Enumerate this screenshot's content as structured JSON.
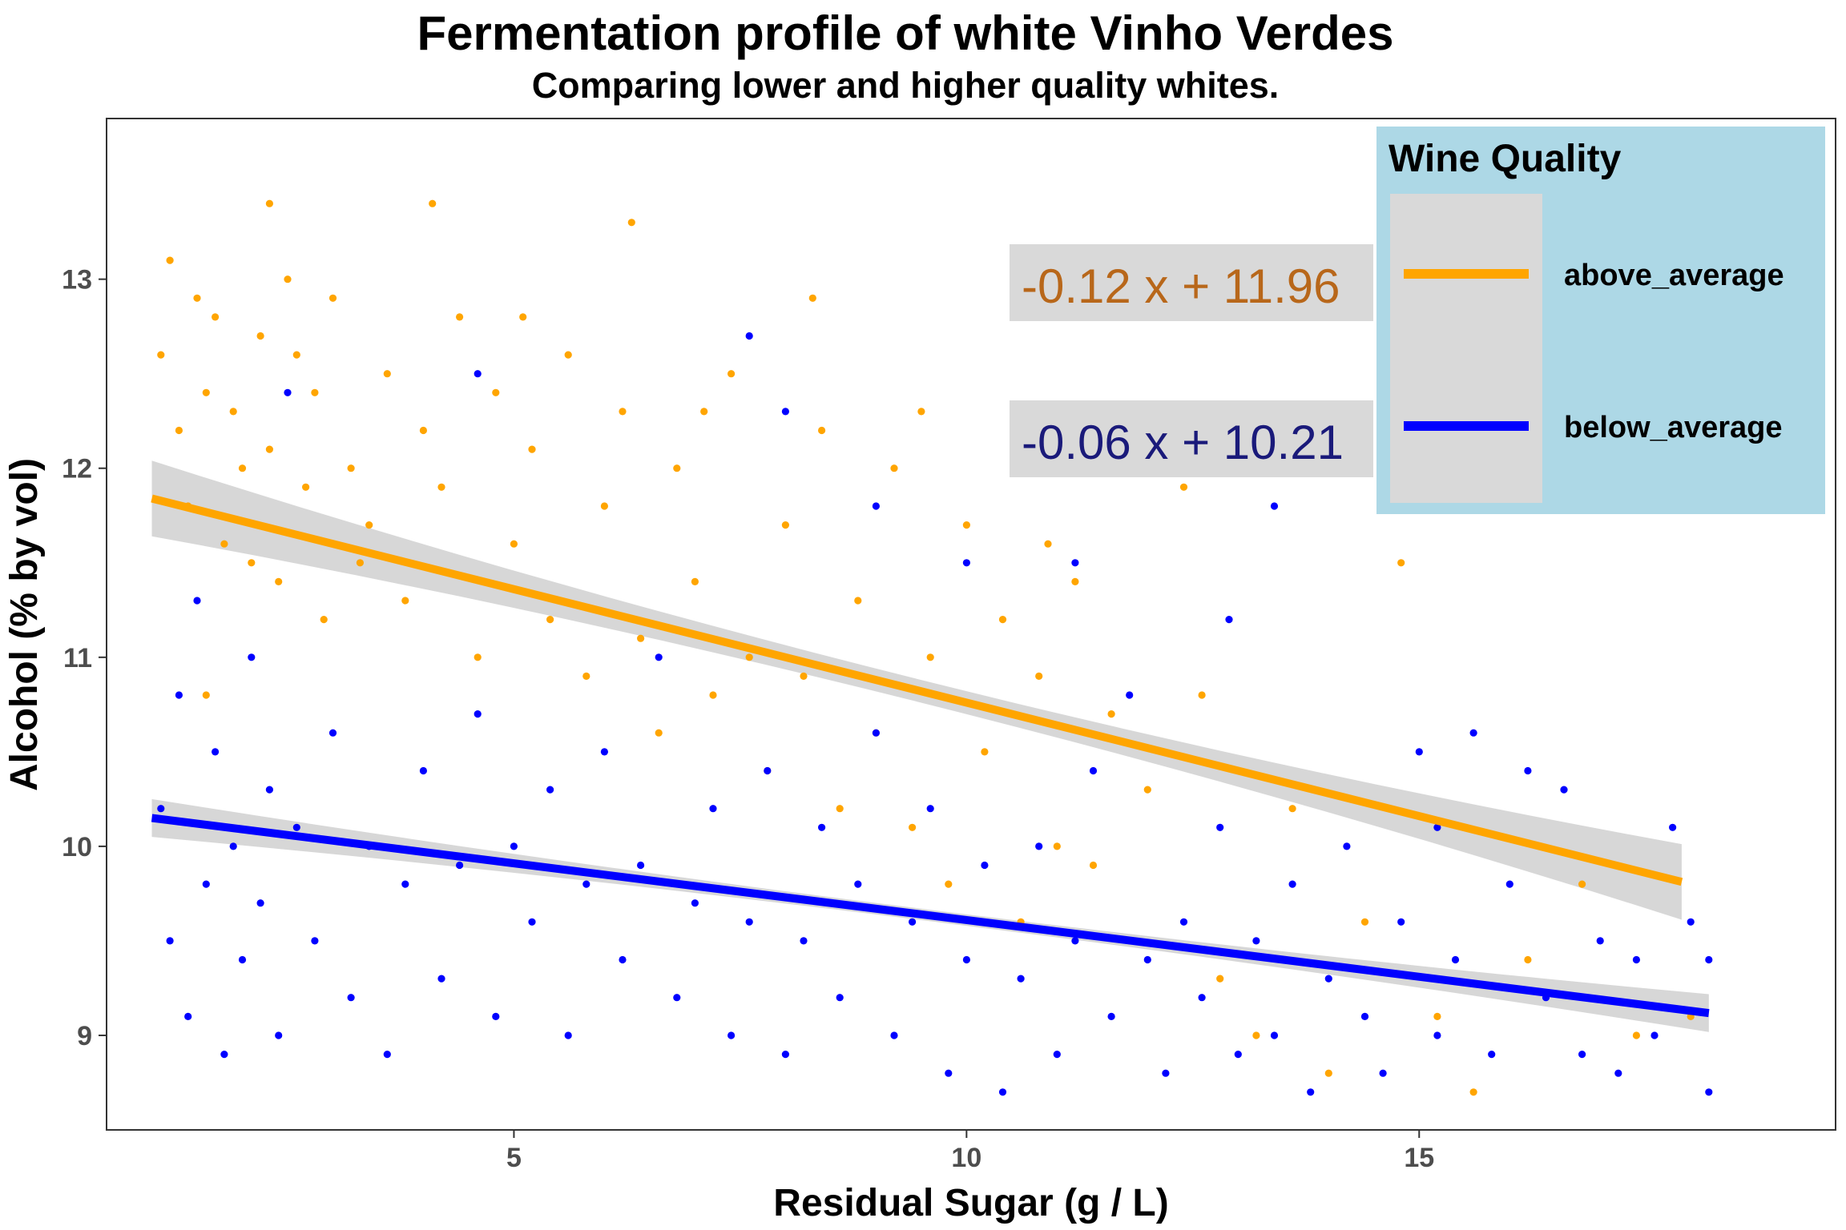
{
  "chart_data": {
    "type": "scatter",
    "title": "Fermentation profile of white Vinho Verdes",
    "subtitle": "Comparing lower and higher quality whites.",
    "xlabel": "Residual Sugar (g / L)",
    "ylabel": "Alcohol (% by vol)",
    "xlim": [
      0.5,
      19.6
    ],
    "ylim": [
      8.5,
      13.85
    ],
    "x_ticks": [
      5,
      10,
      15
    ],
    "y_ticks": [
      9,
      10,
      11,
      12,
      13
    ],
    "x_tick_labels": [
      "5",
      "10",
      "15"
    ],
    "y_tick_labels": [
      "9",
      "10",
      "11",
      "12",
      "13"
    ],
    "grid": false,
    "legend_position": "top-right",
    "legend": {
      "title": "Wine Quality",
      "entries": [
        {
          "label": "above_average",
          "color": "#FFA500"
        },
        {
          "label": "below_average",
          "color": "#0000FF"
        }
      ]
    },
    "series": [
      {
        "name": "above_average",
        "color": "#FFA500",
        "fit": {
          "slope": -0.12,
          "intercept": 11.96,
          "x_range": [
            1.0,
            17.9
          ],
          "band": [
            0.06,
            0.2
          ]
        },
        "equation": "-0.12 x +  11.96",
        "points": [
          [
            1.1,
            12.6
          ],
          [
            1.2,
            13.1
          ],
          [
            1.3,
            12.2
          ],
          [
            1.4,
            11.8
          ],
          [
            1.5,
            12.9
          ],
          [
            1.6,
            12.4
          ],
          [
            1.7,
            12.8
          ],
          [
            1.8,
            11.6
          ],
          [
            1.9,
            12.3
          ],
          [
            2.0,
            12.0
          ],
          [
            2.1,
            11.5
          ],
          [
            2.2,
            12.7
          ],
          [
            2.3,
            12.1
          ],
          [
            2.4,
            11.4
          ],
          [
            2.5,
            13.0
          ],
          [
            2.6,
            12.6
          ],
          [
            2.7,
            11.9
          ],
          [
            2.8,
            12.4
          ],
          [
            2.9,
            11.2
          ],
          [
            3.0,
            12.9
          ],
          [
            3.2,
            12.0
          ],
          [
            3.4,
            11.7
          ],
          [
            3.6,
            12.5
          ],
          [
            3.8,
            11.3
          ],
          [
            4.0,
            12.2
          ],
          [
            4.2,
            11.9
          ],
          [
            4.4,
            12.8
          ],
          [
            4.6,
            11.0
          ],
          [
            4.8,
            12.4
          ],
          [
            5.0,
            11.6
          ],
          [
            5.2,
            12.1
          ],
          [
            5.4,
            11.2
          ],
          [
            5.6,
            12.6
          ],
          [
            5.8,
            10.9
          ],
          [
            6.0,
            11.8
          ],
          [
            6.2,
            12.3
          ],
          [
            6.4,
            11.1
          ],
          [
            6.6,
            10.6
          ],
          [
            6.8,
            12.0
          ],
          [
            7.0,
            11.4
          ],
          [
            7.2,
            10.8
          ],
          [
            7.4,
            12.5
          ],
          [
            7.6,
            11.0
          ],
          [
            7.8,
            10.4
          ],
          [
            8.0,
            11.7
          ],
          [
            8.2,
            10.9
          ],
          [
            8.4,
            12.2
          ],
          [
            8.6,
            10.2
          ],
          [
            8.8,
            11.3
          ],
          [
            9.0,
            10.6
          ],
          [
            9.2,
            12.0
          ],
          [
            9.4,
            10.1
          ],
          [
            9.6,
            11.0
          ],
          [
            9.8,
            9.8
          ],
          [
            10.0,
            11.7
          ],
          [
            10.2,
            10.5
          ],
          [
            10.4,
            11.2
          ],
          [
            10.6,
            9.6
          ],
          [
            10.8,
            10.9
          ],
          [
            11.0,
            10.0
          ],
          [
            11.2,
            11.4
          ],
          [
            11.4,
            9.9
          ],
          [
            11.6,
            10.7
          ],
          [
            11.8,
            9.5
          ],
          [
            12.0,
            10.3
          ],
          [
            12.4,
            11.9
          ],
          [
            12.8,
            9.3
          ],
          [
            13.0,
            10.4
          ],
          [
            13.2,
            9.0
          ],
          [
            13.6,
            10.2
          ],
          [
            14.0,
            8.8
          ],
          [
            14.4,
            9.6
          ],
          [
            14.8,
            11.5
          ],
          [
            15.2,
            9.1
          ],
          [
            15.6,
            8.7
          ],
          [
            16.2,
            9.4
          ],
          [
            16.8,
            9.8
          ],
          [
            17.4,
            9.0
          ],
          [
            18.0,
            9.1
          ],
          [
            12.6,
            10.8
          ],
          [
            10.9,
            11.6
          ],
          [
            9.5,
            12.3
          ],
          [
            8.3,
            12.9
          ],
          [
            6.3,
            13.3
          ],
          [
            4.1,
            13.4
          ],
          [
            2.3,
            13.4
          ],
          [
            5.1,
            12.8
          ],
          [
            7.1,
            12.3
          ],
          [
            3.3,
            11.5
          ],
          [
            1.6,
            10.8
          ]
        ]
      },
      {
        "name": "below_average",
        "color": "#0000FF",
        "fit": {
          "slope": -0.06,
          "intercept": 10.21,
          "x_range": [
            1.0,
            18.2
          ],
          "band": [
            0.03,
            0.1
          ]
        },
        "equation": "-0.06 x +  10.21",
        "points": [
          [
            1.1,
            10.2
          ],
          [
            1.2,
            9.5
          ],
          [
            1.3,
            10.8
          ],
          [
            1.4,
            9.1
          ],
          [
            1.5,
            11.3
          ],
          [
            1.6,
            9.8
          ],
          [
            1.7,
            10.5
          ],
          [
            1.8,
            8.9
          ],
          [
            1.9,
            10.0
          ],
          [
            2.0,
            9.4
          ],
          [
            2.1,
            11.0
          ],
          [
            2.2,
            9.7
          ],
          [
            2.3,
            10.3
          ],
          [
            2.4,
            9.0
          ],
          [
            2.6,
            10.1
          ],
          [
            2.8,
            9.5
          ],
          [
            3.0,
            10.6
          ],
          [
            3.2,
            9.2
          ],
          [
            3.4,
            10.0
          ],
          [
            3.6,
            8.9
          ],
          [
            3.8,
            9.8
          ],
          [
            4.0,
            10.4
          ],
          [
            4.2,
            9.3
          ],
          [
            4.4,
            9.9
          ],
          [
            4.6,
            10.7
          ],
          [
            4.8,
            9.1
          ],
          [
            5.0,
            10.0
          ],
          [
            5.2,
            9.6
          ],
          [
            5.4,
            10.3
          ],
          [
            5.6,
            9.0
          ],
          [
            5.8,
            9.8
          ],
          [
            6.0,
            10.5
          ],
          [
            6.2,
            9.4
          ],
          [
            6.4,
            9.9
          ],
          [
            6.6,
            11.0
          ],
          [
            6.8,
            9.2
          ],
          [
            7.0,
            9.7
          ],
          [
            7.2,
            10.2
          ],
          [
            7.4,
            9.0
          ],
          [
            7.6,
            9.6
          ],
          [
            7.8,
            10.4
          ],
          [
            8.0,
            8.9
          ],
          [
            8.2,
            9.5
          ],
          [
            8.4,
            10.1
          ],
          [
            8.6,
            9.2
          ],
          [
            8.8,
            9.8
          ],
          [
            9.0,
            10.6
          ],
          [
            9.2,
            9.0
          ],
          [
            9.4,
            9.6
          ],
          [
            9.6,
            10.2
          ],
          [
            9.8,
            8.8
          ],
          [
            10.0,
            9.4
          ],
          [
            10.2,
            9.9
          ],
          [
            10.4,
            8.7
          ],
          [
            10.6,
            9.3
          ],
          [
            10.8,
            10.0
          ],
          [
            11.0,
            8.9
          ],
          [
            11.2,
            9.5
          ],
          [
            11.4,
            10.4
          ],
          [
            11.6,
            9.1
          ],
          [
            11.8,
            10.8
          ],
          [
            12.0,
            9.4
          ],
          [
            12.2,
            8.8
          ],
          [
            12.4,
            9.6
          ],
          [
            12.6,
            9.2
          ],
          [
            12.8,
            10.1
          ],
          [
            13.0,
            8.9
          ],
          [
            13.2,
            9.5
          ],
          [
            13.4,
            9.0
          ],
          [
            13.6,
            9.8
          ],
          [
            13.8,
            8.7
          ],
          [
            14.0,
            9.3
          ],
          [
            14.2,
            10.0
          ],
          [
            14.4,
            9.1
          ],
          [
            14.6,
            8.8
          ],
          [
            14.8,
            9.6
          ],
          [
            15.0,
            10.5
          ],
          [
            15.2,
            9.0
          ],
          [
            15.4,
            9.4
          ],
          [
            15.6,
            10.6
          ],
          [
            15.8,
            8.9
          ],
          [
            16.0,
            9.8
          ],
          [
            16.2,
            10.4
          ],
          [
            16.4,
            9.2
          ],
          [
            16.6,
            10.3
          ],
          [
            16.8,
            8.9
          ],
          [
            17.0,
            9.5
          ],
          [
            17.2,
            8.8
          ],
          [
            17.4,
            9.4
          ],
          [
            17.6,
            9.0
          ],
          [
            17.8,
            10.1
          ],
          [
            18.0,
            9.6
          ],
          [
            18.2,
            8.7
          ],
          [
            18.2,
            9.4
          ],
          [
            2.5,
            12.4
          ],
          [
            4.6,
            12.5
          ],
          [
            7.6,
            12.7
          ],
          [
            8.0,
            12.3
          ],
          [
            9.0,
            11.8
          ],
          [
            10.0,
            11.5
          ],
          [
            11.2,
            11.5
          ],
          [
            13.4,
            11.8
          ],
          [
            15.2,
            10.1
          ],
          [
            12.9,
            11.2
          ]
        ]
      }
    ]
  }
}
